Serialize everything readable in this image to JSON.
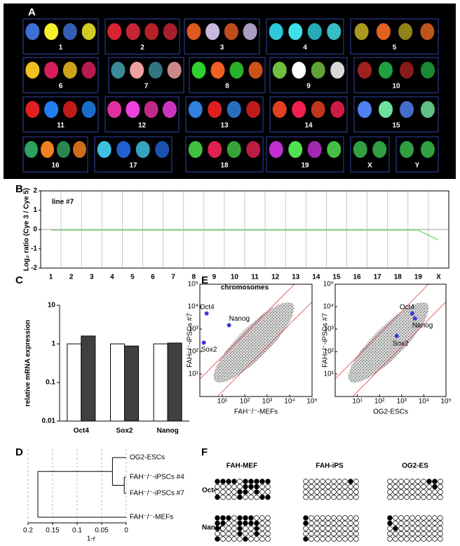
{
  "panel_labels": [
    "A",
    "B",
    "C",
    "D",
    "E",
    "F"
  ],
  "karyotype": {
    "labels": [
      "1",
      "2",
      "3",
      "4",
      "5",
      "6",
      "7",
      "8",
      "9",
      "10",
      "11",
      "12",
      "13",
      "14",
      "15",
      "16",
      "17",
      "18",
      "19",
      "X",
      "Y"
    ]
  },
  "chart_data": [
    {
      "type": "line",
      "title": "line #7",
      "y_label": "Log₂ ratio (Cye 3 / Cye 5)",
      "x_label": "chromosomes",
      "categories": [
        "1",
        "2",
        "3",
        "4",
        "5",
        "6",
        "7",
        "8",
        "9",
        "10",
        "11",
        "12",
        "13",
        "14",
        "15",
        "16",
        "17",
        "18",
        "19",
        "X"
      ],
      "values": [
        -0.03,
        -0.03,
        -0.03,
        -0.03,
        -0.03,
        -0.03,
        -0.03,
        -0.03,
        -0.03,
        -0.03,
        -0.03,
        -0.03,
        -0.03,
        -0.03,
        -0.03,
        -0.03,
        -0.03,
        -0.03,
        -0.03,
        -0.55
      ],
      "color": "#7fd87f",
      "ylim": [
        -2,
        2
      ],
      "yticks": [
        2,
        1,
        0,
        -1,
        -2
      ]
    },
    {
      "type": "bar",
      "y_label": "relative mRNA expression",
      "categories": [
        "Oct4",
        "Sox2",
        "Nanog"
      ],
      "series": [
        {
          "color": "#ffffff",
          "values": [
            1,
            1,
            1
          ]
        },
        {
          "color": "#404040",
          "values": [
            1.6,
            0.88,
            1.05
          ]
        }
      ],
      "ylim": [
        0.01,
        10
      ],
      "yticks": [
        0.01,
        0.1,
        1,
        10
      ],
      "log_y": true
    },
    {
      "type": "dendrogram",
      "x_label": "1-r",
      "leaves": [
        "OG2-ESCs",
        "FAH⁻/⁻-iPSCs #4",
        "FAH⁻/⁻-iPSCs #7",
        "FAH⁻/⁻-MEFs"
      ],
      "merges": [
        {
          "children": [
            1,
            2
          ],
          "height": 0.004
        },
        {
          "children": [
            0,
            4
          ],
          "height": 0.028
        },
        {
          "children": [
            5,
            3
          ],
          "height": 0.18
        }
      ],
      "xlim": [
        0.2,
        0
      ],
      "xticks": [
        0.2,
        0.15,
        0.1,
        0.05,
        0
      ]
    },
    {
      "type": "scatter",
      "x_label": "FAH⁻/⁻-MEFs",
      "y_label": "FAH⁻/⁻-iPSCs #7",
      "log_x": true,
      "log_y": true,
      "color": "#3b3bd6",
      "labels": [
        "Oct4",
        "Nanog",
        "Sox2"
      ],
      "x": [
        2,
        20,
        1.5
      ],
      "y": [
        5000,
        1500,
        250
      ],
      "xlim": [
        1,
        100000
      ],
      "ylim": [
        1,
        100000
      ],
      "xticks": [
        {
          "value": 10,
          "label": "10¹"
        },
        {
          "value": 100,
          "label": "10²"
        },
        {
          "value": 1000,
          "label": "10³"
        },
        {
          "value": 10000,
          "label": "10⁴"
        },
        {
          "value": 100000,
          "label": "10⁵"
        }
      ],
      "yticks": [
        {
          "value": 10,
          "label": "10¹"
        },
        {
          "value": 100,
          "label": "10²"
        },
        {
          "value": 1000,
          "label": "10³"
        },
        {
          "value": 10000,
          "label": "10⁴"
        },
        {
          "value": 100000,
          "label": "10⁵"
        }
      ]
    },
    {
      "type": "scatter",
      "x_label": "OG2-ESCs",
      "y_label": "FAH⁻/⁻-iPSCs #7",
      "log_x": true,
      "log_y": true,
      "color": "#3b3bd6",
      "labels": [
        "Oct4",
        "Nanog",
        "Sox2"
      ],
      "x": [
        3000,
        4000,
        600
      ],
      "y": [
        5000,
        3000,
        500
      ],
      "xlim": [
        1,
        100000
      ],
      "ylim": [
        1,
        100000
      ],
      "xticks": [
        {
          "value": 10,
          "label": "10¹"
        },
        {
          "value": 100,
          "label": "10²"
        },
        {
          "value": 1000,
          "label": "10³"
        },
        {
          "value": 10000,
          "label": "10⁴"
        },
        {
          "value": 100000,
          "label": "10⁵"
        }
      ],
      "yticks": [
        {
          "value": 10,
          "label": "10¹"
        },
        {
          "value": 100,
          "label": "10²"
        },
        {
          "value": 1000,
          "label": "10³"
        },
        {
          "value": 10000,
          "label": "10⁴"
        },
        {
          "value": 100000,
          "label": "10⁵"
        }
      ]
    }
  ],
  "methylation": {
    "columns": [
      "FAH-MEF",
      "FAH-iPS",
      "OG2-ES"
    ],
    "rows": [
      "Oct4",
      "Nanog"
    ],
    "blocks": [
      [
        [
          [
            1,
            1,
            1,
            1,
            0,
            1,
            1,
            1,
            1,
            1
          ],
          [
            0,
            0,
            0,
            0,
            0,
            1,
            1,
            1,
            0,
            0
          ],
          [
            0,
            0,
            0,
            0,
            1,
            1,
            0,
            1,
            0,
            0
          ],
          [
            1,
            0,
            0,
            0,
            1,
            0,
            0,
            0,
            1,
            1
          ]
        ],
        [
          [
            0,
            0,
            0,
            0,
            0,
            0,
            0,
            0,
            1,
            0
          ],
          [
            0,
            0,
            0,
            0,
            0,
            0,
            0,
            0,
            0,
            0
          ],
          [
            0,
            0,
            0,
            0,
            0,
            0,
            0,
            0,
            0,
            0
          ],
          [
            0,
            0,
            0,
            0,
            0,
            0,
            0,
            0,
            0,
            0
          ]
        ],
        [
          [
            0,
            0,
            0,
            0,
            0,
            0,
            0,
            1,
            1,
            0
          ],
          [
            0,
            0,
            0,
            0,
            0,
            0,
            0,
            0,
            1,
            0
          ],
          [
            0,
            0,
            0,
            0,
            0,
            0,
            0,
            0,
            0,
            0
          ],
          [
            0,
            0,
            0,
            0,
            0,
            0,
            0,
            0,
            0,
            0
          ]
        ]
      ],
      [
        [
          [
            1,
            1,
            1,
            0,
            1,
            1,
            1,
            0,
            0,
            0
          ],
          [
            1,
            1,
            0,
            0,
            1,
            1,
            1,
            1,
            0,
            0
          ],
          [
            1,
            0,
            0,
            0,
            1,
            0,
            0,
            1,
            0,
            0
          ],
          [
            0,
            0,
            0,
            0,
            1,
            0,
            0,
            1,
            0,
            0
          ],
          [
            1,
            0,
            0,
            0,
            0,
            1,
            0,
            0,
            0,
            0
          ]
        ],
        [
          [
            1,
            0,
            0,
            0,
            0,
            0,
            0,
            0,
            0,
            0
          ],
          [
            1,
            0,
            0,
            0,
            0,
            0,
            0,
            0,
            0,
            0
          ],
          [
            0,
            0,
            0,
            0,
            0,
            0,
            0,
            0,
            0,
            0
          ],
          [
            0,
            0,
            0,
            0,
            0,
            0,
            0,
            0,
            0,
            0
          ],
          [
            1,
            0,
            0,
            0,
            0,
            0,
            0,
            0,
            0,
            0
          ]
        ],
        [
          [
            1,
            0,
            0,
            0,
            0,
            0,
            0,
            0,
            0,
            0
          ],
          [
            1,
            0,
            0,
            0,
            0,
            0,
            0,
            0,
            0,
            0
          ],
          [
            0,
            1,
            0,
            0,
            0,
            0,
            0,
            0,
            0,
            0
          ],
          [
            0,
            0,
            0,
            0,
            0,
            0,
            0,
            0,
            0,
            0
          ],
          [
            0,
            0,
            0,
            0,
            0,
            0,
            0,
            0,
            0,
            0
          ]
        ]
      ]
    ]
  }
}
